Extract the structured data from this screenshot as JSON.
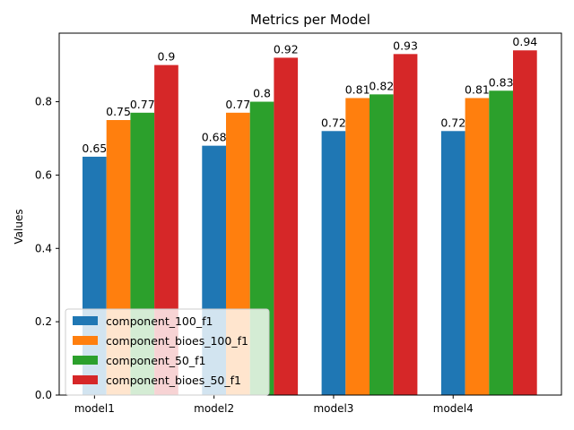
{
  "chart_data": {
    "type": "bar",
    "title": "Metrics per Model",
    "xlabel": "",
    "ylabel": "Values",
    "categories": [
      "model1",
      "model2",
      "model3",
      "model4"
    ],
    "series": [
      {
        "name": "component_100_f1",
        "color": "#1f77b4",
        "values": [
          0.65,
          0.68,
          0.72,
          0.72
        ]
      },
      {
        "name": "component_bioes_100_f1",
        "color": "#ff7f0e",
        "values": [
          0.75,
          0.77,
          0.81,
          0.81
        ]
      },
      {
        "name": "component_50_f1",
        "color": "#2ca02c",
        "values": [
          0.77,
          0.8,
          0.82,
          0.83
        ]
      },
      {
        "name": "component_bioes_50_f1",
        "color": "#d62728",
        "values": [
          0.9,
          0.92,
          0.93,
          0.94
        ]
      }
    ],
    "ylim": [
      0,
      0.987
    ],
    "yticks": [
      "0.0",
      "0.2",
      "0.4",
      "0.6",
      "0.8"
    ],
    "legend_position": "lower-left",
    "grid": false
  }
}
